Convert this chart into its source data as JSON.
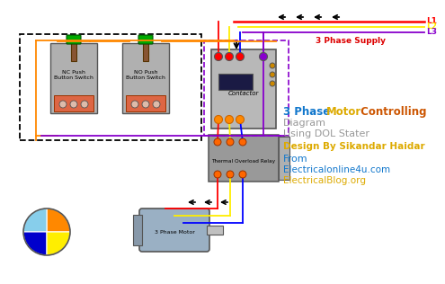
{
  "bg_color": "#ffffff",
  "RED": "#ff0000",
  "YELLOW": "#ffee00",
  "BLUE": "#0000ff",
  "PURPLE": "#8800cc",
  "ORANGE": "#ff8800",
  "BLACK": "#000000",
  "DKGRAY": "#555555",
  "LTGRAY": "#aaaaaa",
  "WHITE": "#ffffff",
  "GREEN": "#00aa00",
  "supply_label": "3 Phase Supply",
  "l1_label": "L1",
  "l2_label": "L2",
  "l3_label": "L3",
  "motor_label": "3 Phase Motor",
  "nc_label": "NC Push\nButton Switch",
  "no_label": "NO Push\nButton Switch",
  "thermal_label": "Thermal Overload Relay",
  "contactor_label": "Contactor"
}
